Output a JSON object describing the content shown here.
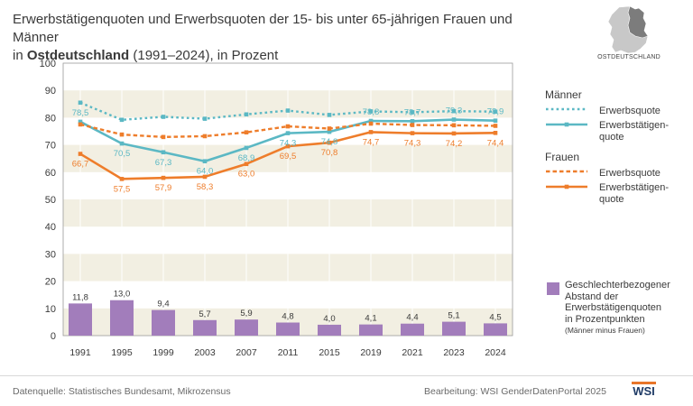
{
  "title": {
    "line1": "Erwerbstätigenquoten und Erwerbsquoten der 15- bis unter 65-jährigen Frauen und Männer",
    "line2_prefix": "in ",
    "line2_bold": "Ostdeutschland",
    "line2_suffix": " (1991–2024), in Prozent"
  },
  "map": {
    "label": "OSTDEUTSCHLAND"
  },
  "legend": {
    "men": "Männer",
    "women": "Frauen",
    "erwerbsquote": "Erwerbsquote",
    "erwerbstaetigen_line1": "Erwerbstätigen-",
    "erwerbstaetigen_line2": "quote",
    "gap_line1": "Geschlechterbezogener",
    "gap_line2": "Abstand der",
    "gap_line3": "Erwerbstätigenquoten",
    "gap_line4": "in Prozentpunkten",
    "gap_sub": "(Männer minus Frauen)"
  },
  "footer": {
    "source": "Datenquelle: Statistisches Bundesamt, Mikrozensus",
    "editor": "Bearbeitung: WSI GenderDatenPortal 2025",
    "logo": "WSI"
  },
  "colors": {
    "men": "#5bb8c4",
    "women": "#ee7d2b",
    "bars": "#a27dbb",
    "band": "#f2efe2",
    "axis": "#555555"
  },
  "chart_data": {
    "type": "line",
    "categories": [
      "1991",
      "1995",
      "1999",
      "2003",
      "2007",
      "2011",
      "2015",
      "2019",
      "2021",
      "2023",
      "2024"
    ],
    "ylim": [
      0,
      100
    ],
    "yticks": [
      0,
      10,
      20,
      30,
      40,
      50,
      60,
      70,
      80,
      90,
      100
    ],
    "series": [
      {
        "name": "Männer Erwerbsquote",
        "style": "dotted",
        "color": "men",
        "values": [
          85.5,
          79.2,
          80.3,
          79.6,
          81.2,
          82.6,
          81.0,
          82.3,
          82.0,
          82.4,
          82.2
        ]
      },
      {
        "name": "Männer Erwerbstätigenquote",
        "style": "solid",
        "color": "men",
        "values": [
          78.5,
          70.5,
          67.3,
          64.0,
          68.9,
          74.3,
          74.8,
          78.8,
          78.7,
          79.3,
          78.9
        ],
        "labels": [
          "78,5",
          "70,5",
          "67,3",
          "64,0",
          "68,9",
          "74,3",
          "74,8",
          "78,8",
          "78,7",
          "79,3",
          "78,9"
        ]
      },
      {
        "name": "Frauen Erwerbsquote",
        "style": "dashed",
        "color": "women",
        "values": [
          77.5,
          73.8,
          72.9,
          73.2,
          74.6,
          76.8,
          76.0,
          77.8,
          77.3,
          77.2,
          77.0
        ]
      },
      {
        "name": "Frauen Erwerbstätigenquote",
        "style": "solid",
        "color": "women",
        "values": [
          66.7,
          57.5,
          57.9,
          58.3,
          63.0,
          69.5,
          70.8,
          74.7,
          74.3,
          74.2,
          74.4
        ],
        "labels": [
          "66,7",
          "57,5",
          "57,9",
          "58,3",
          "63,0",
          "69,5",
          "70,8",
          "74,7",
          "74,3",
          "74,2",
          "74,4"
        ]
      },
      {
        "name": "Geschlechterbezogener Abstand",
        "type": "bar",
        "color": "bars",
        "values": [
          11.8,
          13.0,
          9.4,
          5.7,
          5.9,
          4.8,
          4.0,
          4.1,
          4.4,
          5.1,
          4.5
        ],
        "labels": [
          "11,8",
          "13,0",
          "9,4",
          "5,7",
          "5,9",
          "4,8",
          "4,0",
          "4,1",
          "4,4",
          "5,1",
          "4,5"
        ]
      }
    ]
  }
}
